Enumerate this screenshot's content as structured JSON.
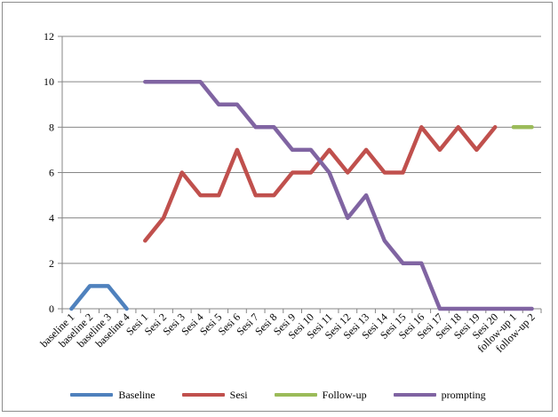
{
  "chart_data": {
    "type": "line",
    "categories": [
      "baseline 1",
      "baseline 2",
      "baseline 3",
      "baseline 4",
      "Sesi 1",
      "Sesi 2",
      "Sesi 3",
      "Sesi 4",
      "Sesi 5",
      "Sesi 6",
      "Sesi 7",
      "Sesi 8",
      "Sesi 9",
      "Sesi 10",
      "Sesi 11",
      "Sesi 12",
      "Sesi 13",
      "Sesi 14",
      "Sesi 15",
      "Sesi 16",
      "Sesi 17",
      "Sesi 18",
      "Sesi 19",
      "Sesi 20",
      "follow-up 1",
      "follow-up 2"
    ],
    "series": [
      {
        "name": "Baseline",
        "color": "#4f81bd",
        "values": [
          0,
          1,
          1,
          0,
          null,
          null,
          null,
          null,
          null,
          null,
          null,
          null,
          null,
          null,
          null,
          null,
          null,
          null,
          null,
          null,
          null,
          null,
          null,
          null,
          null,
          null
        ]
      },
      {
        "name": "Sesi",
        "color": "#c0504d",
        "values": [
          null,
          null,
          null,
          null,
          3,
          4,
          6,
          5,
          5,
          7,
          5,
          5,
          6,
          6,
          7,
          6,
          7,
          6,
          6,
          8,
          7,
          8,
          7,
          8,
          null,
          null
        ]
      },
      {
        "name": "Follow-up",
        "color": "#9bbb59",
        "values": [
          null,
          null,
          null,
          null,
          null,
          null,
          null,
          null,
          null,
          null,
          null,
          null,
          null,
          null,
          null,
          null,
          null,
          null,
          null,
          null,
          null,
          null,
          null,
          null,
          8,
          8
        ]
      },
      {
        "name": "prompting",
        "color": "#8064a2",
        "values": [
          null,
          null,
          null,
          null,
          10,
          10,
          10,
          10,
          9,
          9,
          8,
          8,
          7,
          7,
          6,
          4,
          5,
          3,
          2,
          2,
          0,
          0,
          0,
          0,
          0,
          0
        ]
      }
    ],
    "ylim": [
      0,
      12
    ],
    "yticks": [
      0,
      2,
      4,
      6,
      8,
      10,
      12
    ],
    "title": "",
    "xlabel": "",
    "ylabel": "",
    "grid": "horizontal",
    "legend_position": "bottom"
  }
}
